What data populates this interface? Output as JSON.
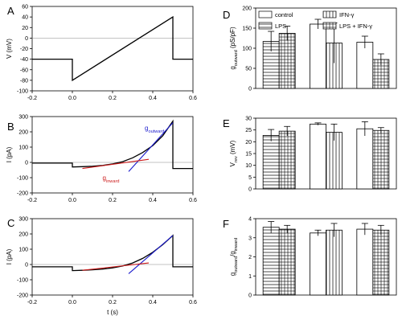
{
  "chart_data": [
    {
      "panel": "A",
      "type": "line",
      "xlabel": "",
      "ylabel": "V (mV)",
      "xlim": [
        -0.2,
        0.6
      ],
      "ylim": [
        -100,
        60
      ],
      "xticks": [
        "-0.2",
        "0.0",
        "0.2",
        "0.4",
        "0.6"
      ],
      "yticks": [
        "-100",
        "-80",
        "-60",
        "-40",
        "-20",
        "0",
        "20",
        "40",
        "60"
      ],
      "series": [
        {
          "x": [
            -0.2,
            0.0,
            0.0,
            0.5,
            0.5,
            0.6
          ],
          "y": [
            -40,
            -40,
            -80,
            40,
            -40,
            -40
          ]
        }
      ]
    },
    {
      "panel": "B",
      "type": "line",
      "xlabel": "",
      "ylabel": "I (pA)",
      "xlim": [
        -0.2,
        0.6
      ],
      "ylim": [
        -200,
        300
      ],
      "xticks": [
        "-0.2",
        "0.0",
        "0.2",
        "0.4",
        "0.6"
      ],
      "yticks": [
        "-200",
        "-100",
        "0",
        "100",
        "200",
        "300"
      ],
      "annotations": [
        {
          "main": "g",
          "sub": "outward",
          "color": "#1a1acc"
        },
        {
          "main": "g",
          "sub": "inward",
          "color": "#cc1a1a"
        }
      ],
      "series": [
        {
          "color": "#000000",
          "x": [
            -0.2,
            -0.1,
            0.0,
            0.0,
            0.05,
            0.1,
            0.15,
            0.2,
            0.25,
            0.3,
            0.35,
            0.4,
            0.45,
            0.5,
            0.5,
            0.6
          ],
          "y": [
            -5,
            -5,
            -5,
            -30,
            -28,
            -25,
            -20,
            -10,
            5,
            30,
            65,
            110,
            175,
            270,
            -40,
            -40
          ]
        },
        {
          "color": "#1a1acc",
          "x": [
            0.28,
            0.5
          ],
          "y": [
            -60,
            260
          ]
        },
        {
          "color": "#cc1a1a",
          "x": [
            0.05,
            0.38
          ],
          "y": [
            -40,
            20
          ]
        }
      ]
    },
    {
      "panel": "C",
      "type": "line",
      "xlabel": "t (s)",
      "ylabel": "I (pA)",
      "xlim": [
        -0.2,
        0.6
      ],
      "ylim": [
        -200,
        300
      ],
      "xticks": [
        "-0.2",
        "0.0",
        "0.2",
        "0.4",
        "0.6"
      ],
      "yticks": [
        "-200",
        "-100",
        "0",
        "100",
        "200",
        "300"
      ],
      "series": [
        {
          "color": "#000000",
          "x": [
            -0.2,
            -0.1,
            0.0,
            0.0,
            0.05,
            0.1,
            0.15,
            0.2,
            0.25,
            0.3,
            0.35,
            0.4,
            0.45,
            0.5,
            0.5,
            0.6
          ],
          "y": [
            -15,
            -15,
            -15,
            -40,
            -38,
            -35,
            -30,
            -22,
            -10,
            10,
            40,
            80,
            130,
            190,
            -15,
            -15
          ]
        },
        {
          "color": "#1a1acc",
          "x": [
            0.28,
            0.5
          ],
          "y": [
            -60,
            190
          ]
        },
        {
          "color": "#cc1a1a",
          "x": [
            0.05,
            0.38
          ],
          "y": [
            -38,
            10
          ]
        }
      ]
    },
    {
      "panel": "D",
      "type": "bar",
      "ylabel": {
        "main": "g",
        "sub": "outward",
        "tail": " (pS/pF)"
      },
      "ylim": [
        0,
        200
      ],
      "yticks": [
        "0",
        "50",
        "100",
        "150",
        "200"
      ],
      "groups": 3,
      "series": [
        {
          "name": "control",
          "values": [
            null,
            160,
            115
          ],
          "err": [
            null,
            12,
            15
          ]
        },
        {
          "name": "LPS",
          "values": [
            117,
            null,
            null
          ],
          "err": [
            25,
            null,
            null
          ]
        },
        {
          "name": "IFN-γ",
          "values": [
            null,
            113,
            null
          ],
          "err": [
            null,
            50,
            null
          ]
        },
        {
          "name": "LPS + IFN-γ",
          "values": [
            137,
            null,
            72
          ],
          "err": [
            18,
            null,
            14
          ]
        }
      ]
    },
    {
      "panel": "E",
      "type": "bar",
      "ylabel": {
        "main": "V",
        "sub": "rev",
        "tail": " (mV)"
      },
      "ylim": [
        0,
        30
      ],
      "yticks": [
        "0",
        "5",
        "10",
        "15",
        "20",
        "25",
        "30"
      ],
      "groups": 3,
      "series": [
        {
          "name": "control",
          "values": [
            null,
            27.5,
            25.5
          ],
          "err": [
            null,
            0.5,
            3
          ]
        },
        {
          "name": "LPS",
          "values": [
            22.7,
            null,
            null
          ],
          "err": [
            2.5,
            null,
            null
          ]
        },
        {
          "name": "IFN-γ",
          "values": [
            null,
            24,
            null
          ],
          "err": [
            null,
            3.5,
            null
          ]
        },
        {
          "name": "LPS + IFN-γ",
          "values": [
            24.5,
            null,
            24.8
          ],
          "err": [
            2,
            null,
            1.2
          ]
        }
      ]
    },
    {
      "panel": "F",
      "type": "bar",
      "ylabel": {
        "main": "g",
        "sub": "outward",
        "mid": "/g",
        "sub2": "inward"
      },
      "ylim": [
        0,
        4
      ],
      "yticks": [
        "0",
        "1",
        "2",
        "3",
        "4"
      ],
      "groups": 3,
      "series": [
        {
          "name": "control",
          "values": [
            null,
            3.25,
            3.45
          ],
          "err": [
            null,
            0.15,
            0.3
          ]
        },
        {
          "name": "LPS",
          "values": [
            3.55,
            null,
            null
          ],
          "err": [
            0.3,
            null,
            null
          ]
        },
        {
          "name": "IFN-γ",
          "values": [
            null,
            3.4,
            null
          ],
          "err": [
            null,
            0.35,
            null
          ]
        },
        {
          "name": "LPS + IFN-γ",
          "values": [
            3.45,
            null,
            3.4
          ],
          "err": [
            0.2,
            null,
            0.25
          ]
        }
      ]
    }
  ]
}
